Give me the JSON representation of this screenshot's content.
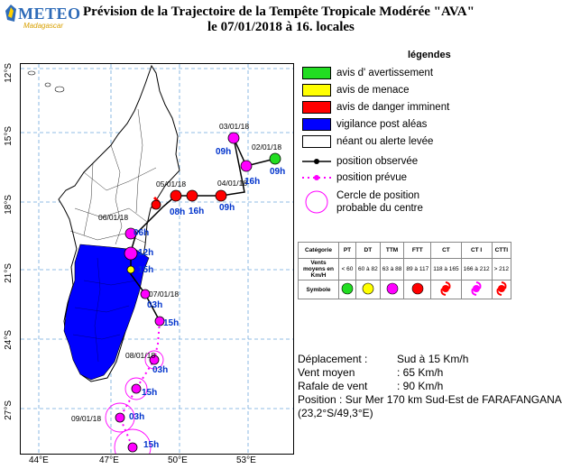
{
  "header": {
    "logo": "METEO",
    "logo_sub": "Madagascar",
    "title_line1": "Prévision de la Trajectoire de la Tempête Tropicale Modérée \"AVA\"",
    "title_line2": "le 07/01/2018 à 16. locales"
  },
  "legend": {
    "title": "légendes",
    "items": [
      {
        "label": "avis d' avertissement",
        "color": "#22dd22"
      },
      {
        "label": "avis de menace",
        "color": "#ffff00"
      },
      {
        "label": "avis de danger imminent",
        "color": "#ff0000"
      },
      {
        "label": "vigilance post aléas",
        "color": "#0000ff"
      },
      {
        "label": "néant ou alerte levée",
        "color": "#ffffff"
      }
    ],
    "observed": "position observée",
    "forecast": "position prévue",
    "circle_line1": "Cercle de position",
    "circle_line2": "probable du centre"
  },
  "categories": {
    "header": [
      "Catégorie",
      "PT",
      "DT",
      "TTM",
      "FTT",
      "CT",
      "CT I",
      "CTTI"
    ],
    "winds": [
      "Vents moyens en Km/H",
      "< 60",
      "60 à 82",
      "63 à 88",
      "89 à 117",
      "118 à 165",
      "166 à 212",
      "> 212"
    ],
    "symbol_label": "Symbole",
    "symbol_colors": [
      "#22dd22",
      "#ffff00",
      "#ff00ff",
      "#ff0000",
      "#ff0000",
      "#ff00ff",
      "#ff0000"
    ]
  },
  "info": {
    "deplacement_label": "Déplacement :",
    "deplacement_value": "Sud à 15 Km/h",
    "vent_label": "Vent moyen",
    "vent_value": ": 65 Km/h",
    "rafale_label": "Rafale de vent",
    "rafale_value": ": 90 Km/h",
    "position_label": "Position :",
    "position_value": "Sur Mer 170 km Sud-Est de FARAFANGANA",
    "coords": "(23,2°S/49,3°E)"
  },
  "axes": {
    "lat_ticks": [
      "12°S",
      "15°S",
      "18°S",
      "21°S",
      "24°S",
      "27°S"
    ],
    "lon_ticks": [
      "44°E",
      "47°E",
      "50°E",
      "53°E"
    ]
  },
  "track": {
    "date_labels": [
      "02/01/18",
      "03/01/18",
      "04/01/18",
      "05/01/18",
      "06/01/18",
      "07/01/18",
      "08/01/18",
      "09/01/18"
    ],
    "time_labels": [
      "09h",
      "09h",
      "16h",
      "09h",
      "16h",
      "08h",
      "06h",
      "12h",
      "15h",
      "03h",
      "15h",
      "03h",
      "15h",
      "03h",
      "15h"
    ]
  }
}
